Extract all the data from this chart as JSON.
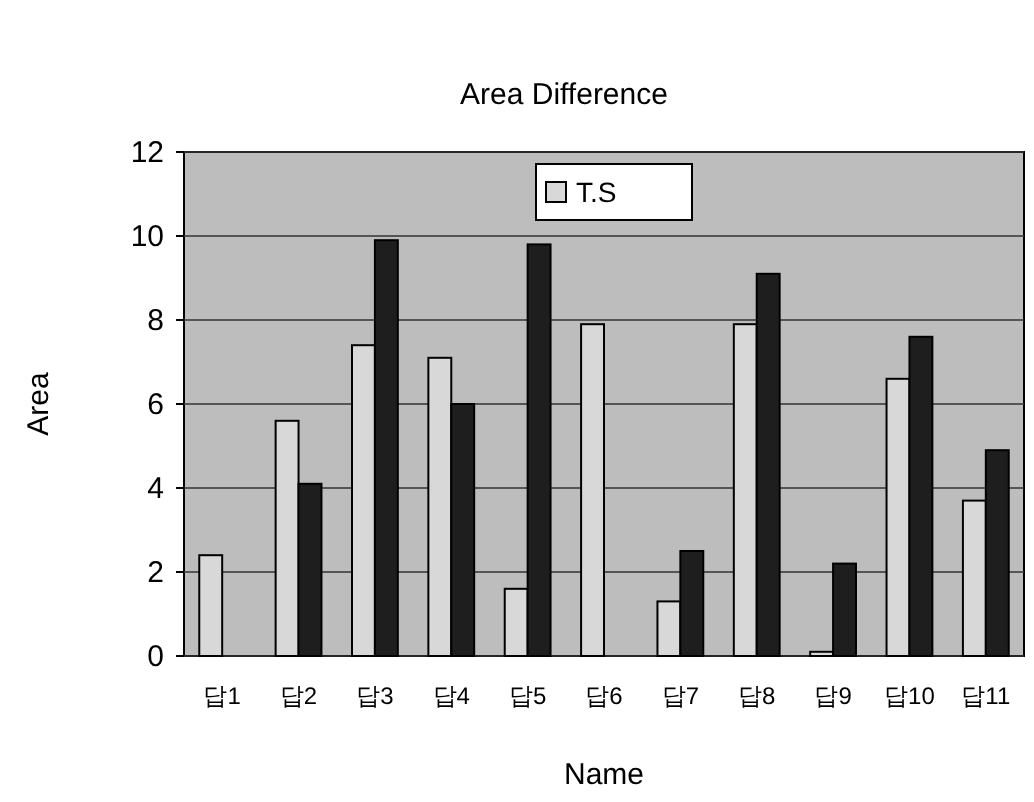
{
  "chart_data": {
    "type": "bar",
    "title": "Area Difference",
    "xlabel": "Name",
    "ylabel": "Area",
    "categories": [
      "답1",
      "답2",
      "답3",
      "답4",
      "답5",
      "답6",
      "답7",
      "답8",
      "답9",
      "답10",
      "답11"
    ],
    "series": [
      {
        "name": "T.S",
        "color": "#d8d8d8",
        "values": [
          2.4,
          5.6,
          7.4,
          7.1,
          1.6,
          7.9,
          1.3,
          7.9,
          0.1,
          6.6,
          3.7
        ]
      },
      {
        "color": "#1e1e1e",
        "values": [
          0,
          4.1,
          9.9,
          6.0,
          9.8,
          0,
          2.5,
          9.1,
          2.2,
          7.6,
          4.9
        ]
      }
    ],
    "ylim": [
      0,
      12
    ],
    "yticks": [
      0,
      2,
      4,
      6,
      8,
      10,
      12
    ],
    "grid": "y",
    "legend": "top"
  }
}
